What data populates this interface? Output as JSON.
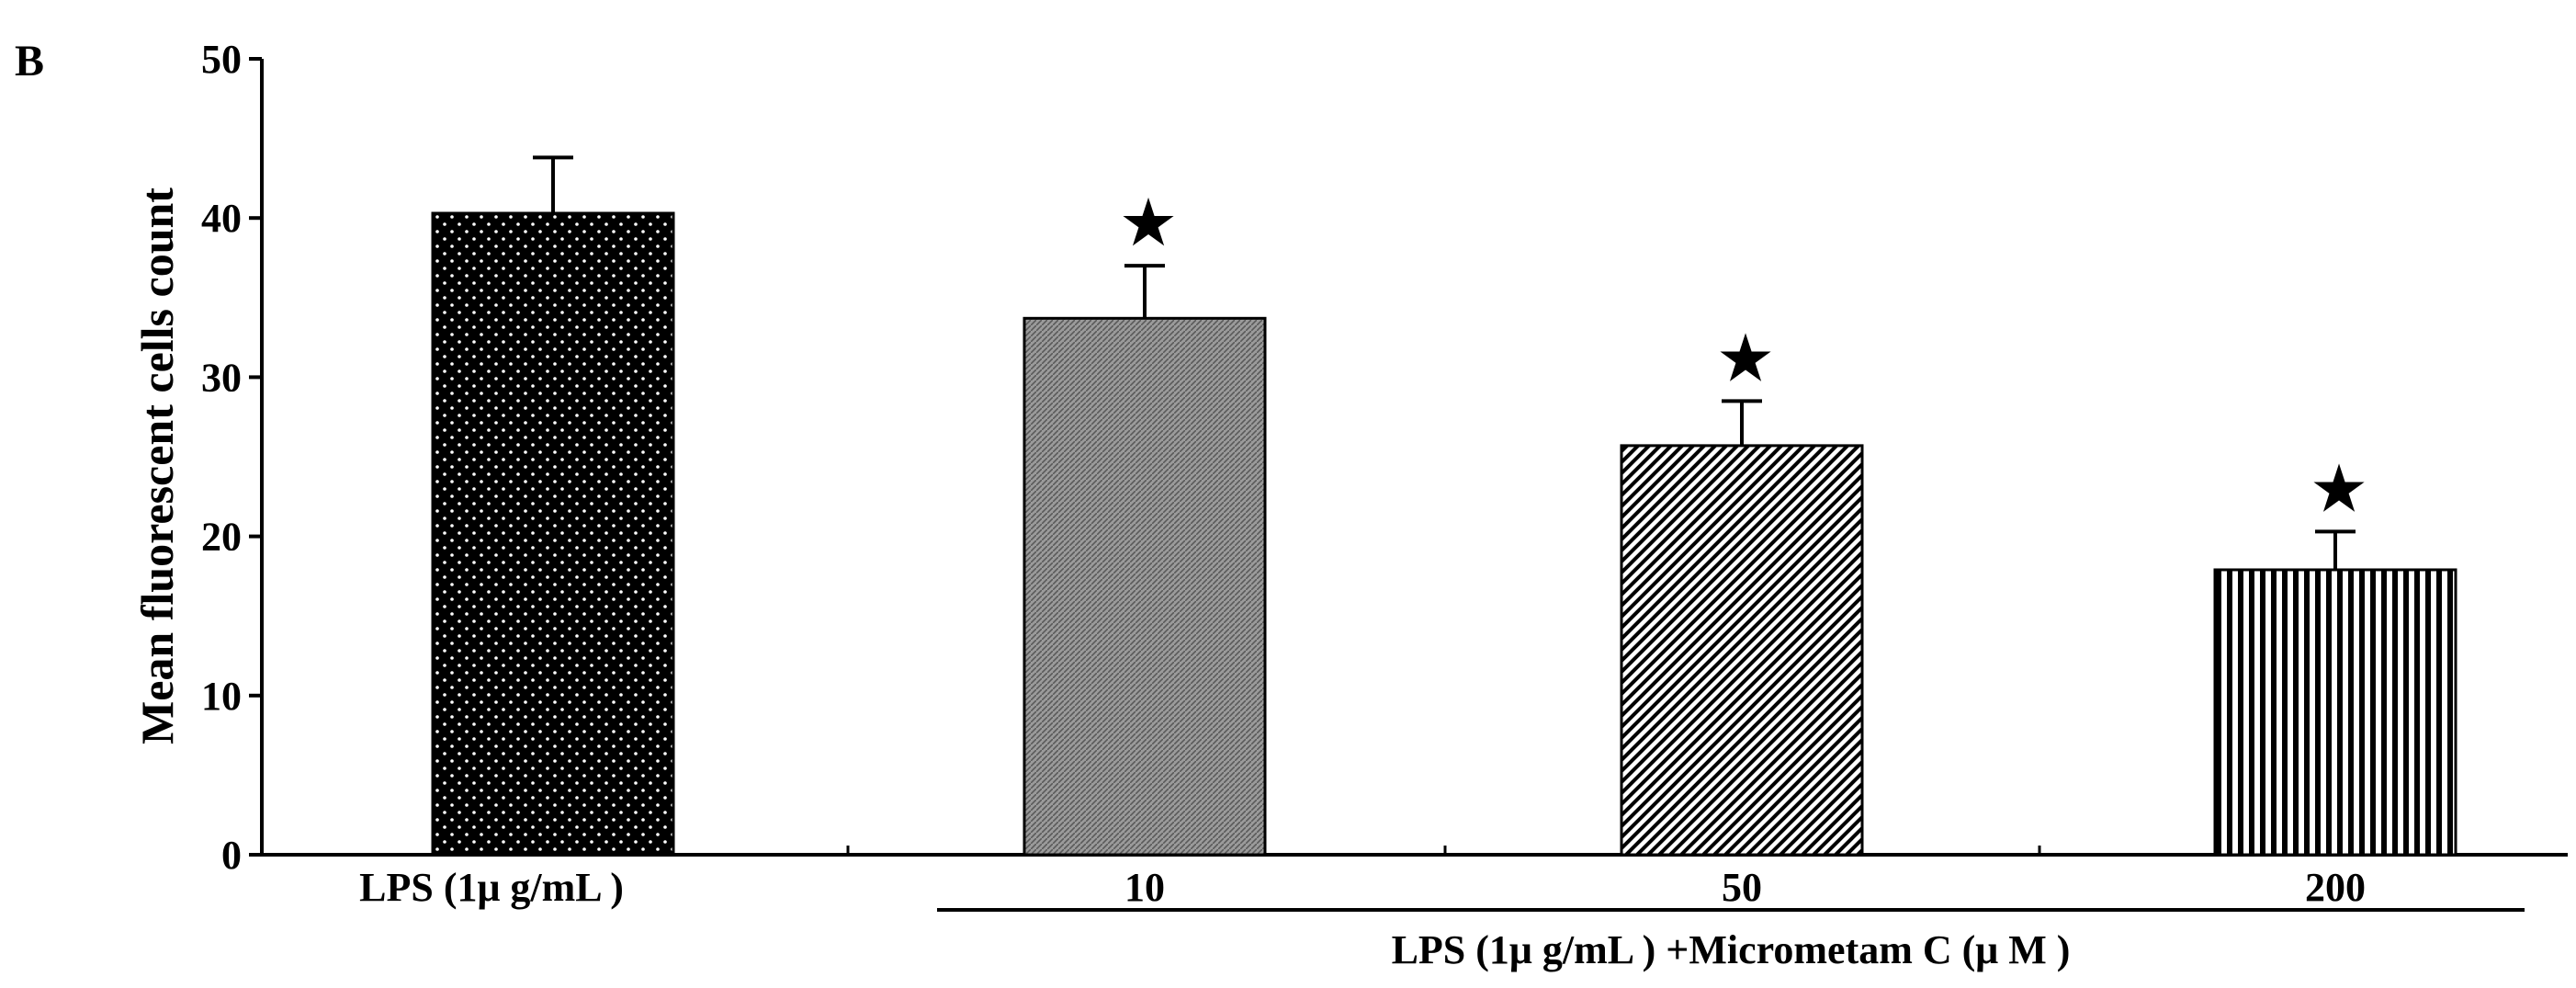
{
  "panel_label": "B",
  "chart_data": {
    "type": "bar",
    "title": "",
    "ylabel": "Mean fluorescent cells count",
    "xlabel": "",
    "ylim": [
      0,
      50
    ],
    "yticks": [
      0,
      10,
      20,
      30,
      40,
      50
    ],
    "grid": false,
    "legend": "none",
    "categories": [
      "LPS (1μ g/mL )",
      "10",
      "50",
      "200"
    ],
    "values": [
      40.3,
      33.7,
      25.7,
      17.9
    ],
    "errors": [
      3.5,
      3.3,
      2.8,
      2.4
    ],
    "significant": [
      false,
      true,
      true,
      true
    ],
    "significance_marker": "★",
    "fills": [
      "dots",
      "fine-gray",
      "diagonal",
      "vertical"
    ],
    "group_label": "LPS (1μ g/mL ) +Micrometam C  (μ M )",
    "colors": {
      "bar_stroke": "#000000",
      "axis": "#000000",
      "background": "#ffffff"
    }
  }
}
